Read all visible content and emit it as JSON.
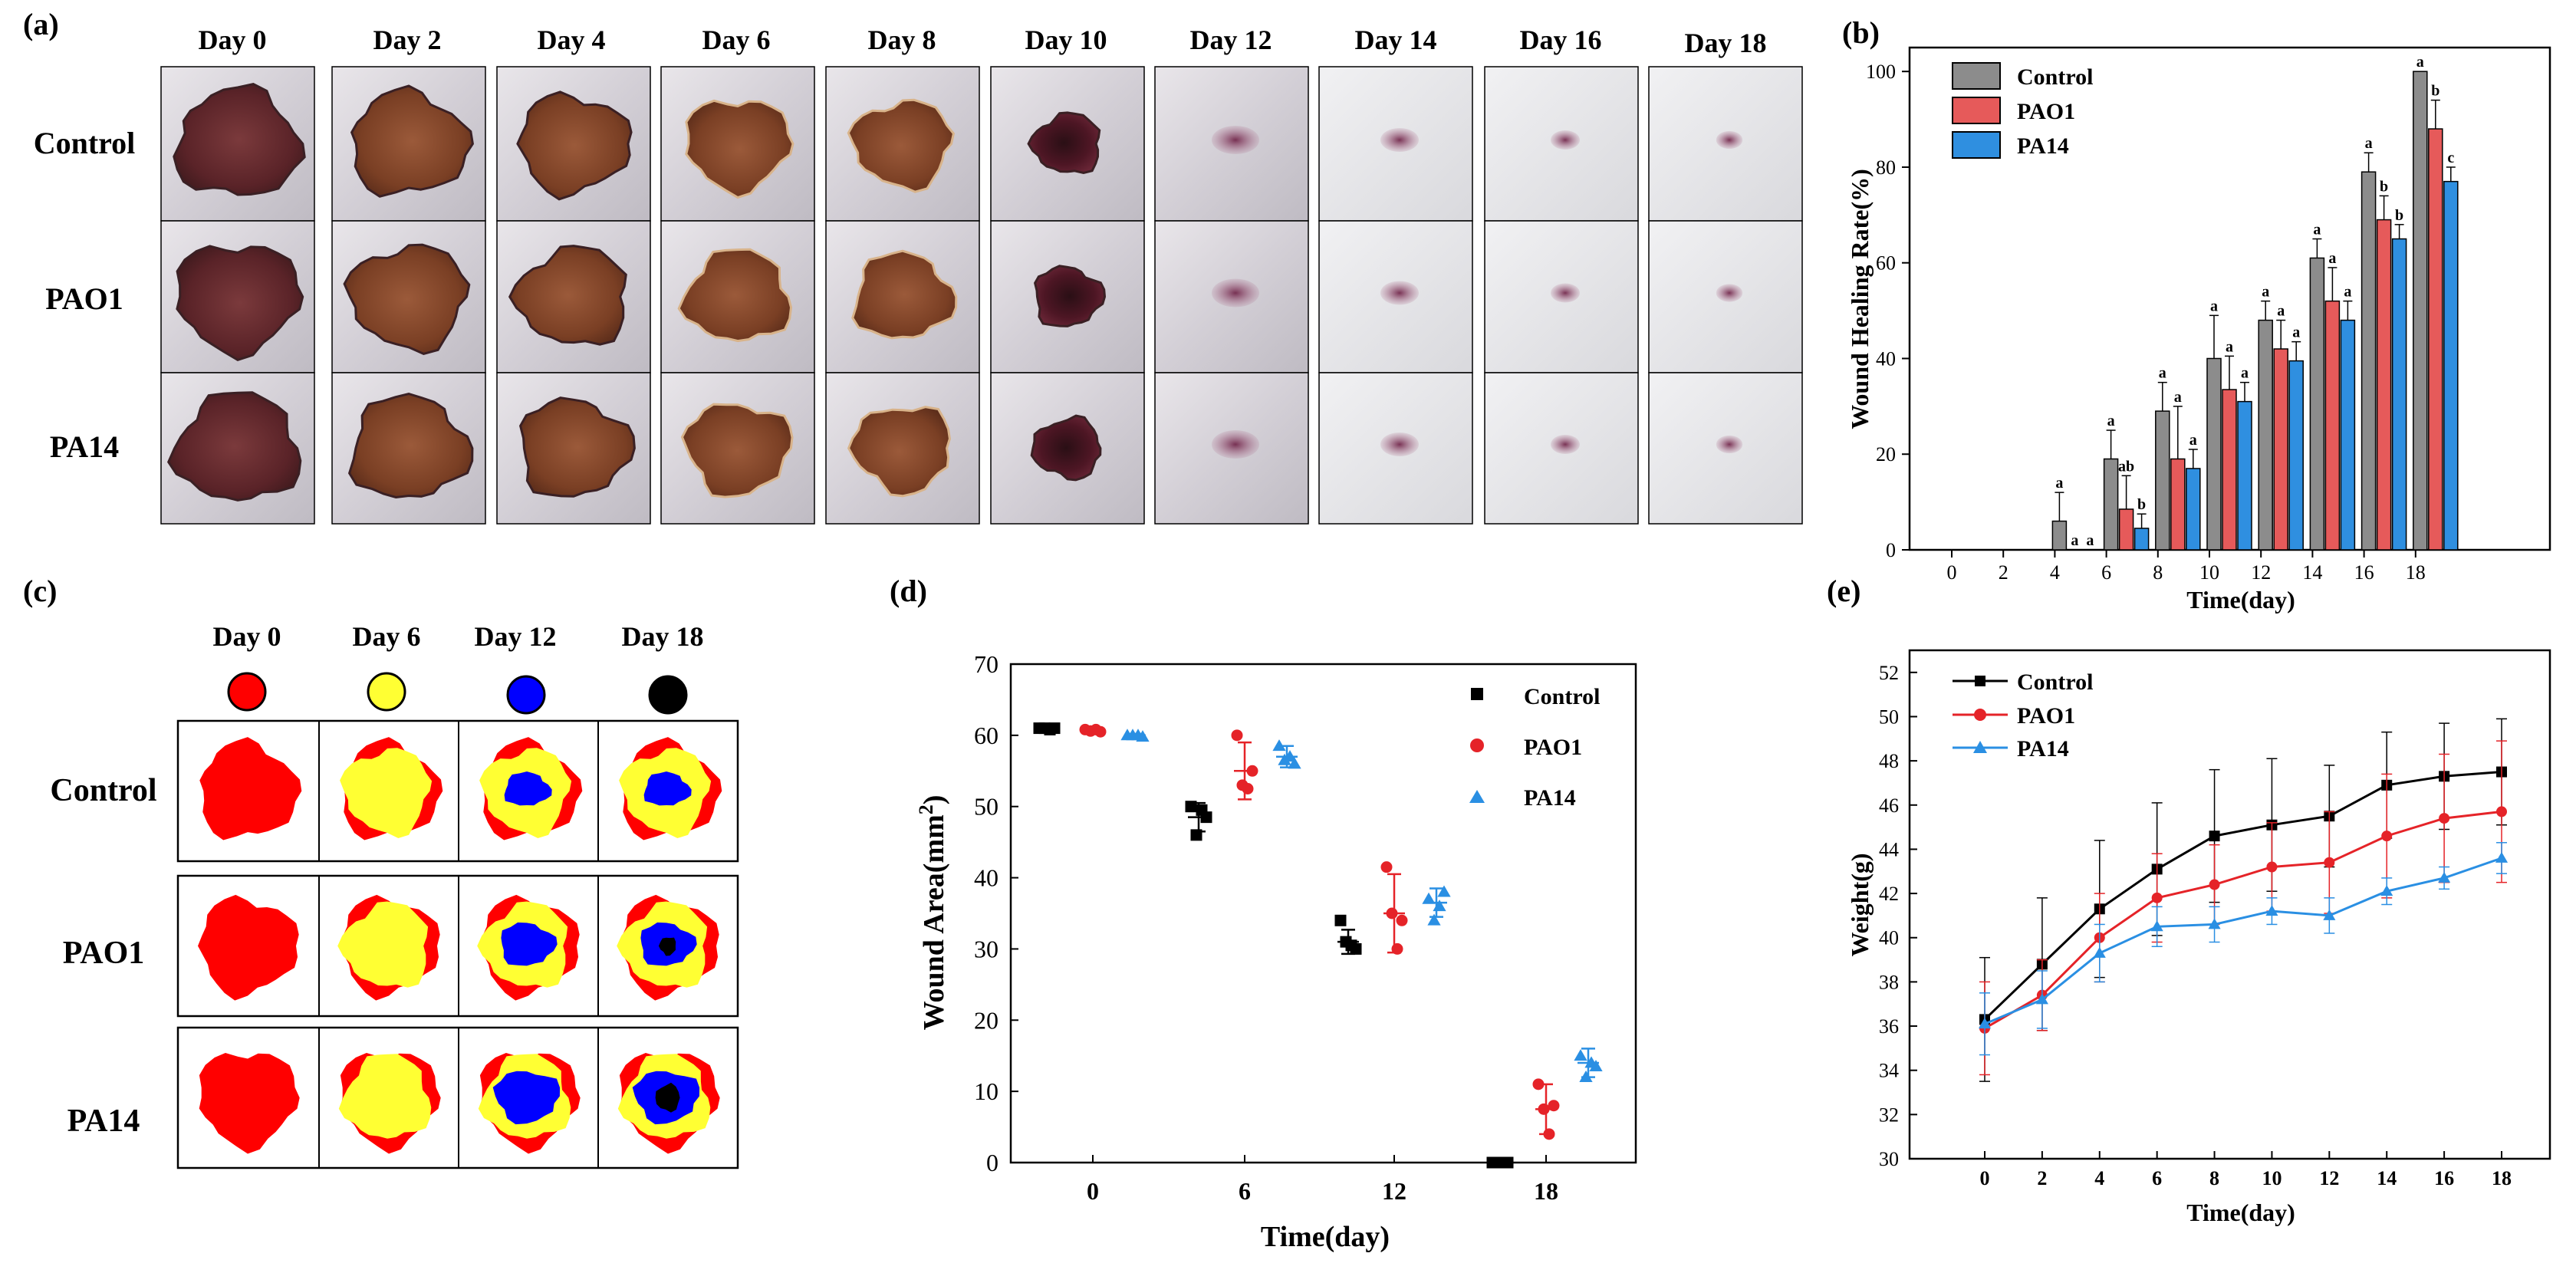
{
  "panel_labels": {
    "a": "(a)",
    "b": "(b)",
    "c": "(c)",
    "d": "(d)",
    "e": "(e)"
  },
  "groups": [
    "Control",
    "PAO1",
    "PA14"
  ],
  "colors": {
    "control": "#000000",
    "pao1": "#e52328",
    "pa14": "#2a8fe3",
    "bar_control": "#8c8c8c",
    "bar_pao1": "#e65a5a",
    "bar_pa14": "#2f8fe0",
    "map_red": "#ff0000",
    "map_yellow": "#ffff33",
    "map_blue": "#0000ff",
    "map_black": "#000000"
  },
  "panel_a": {
    "days": [
      "Day 0",
      "Day 2",
      "Day 4",
      "Day 6",
      "Day 8",
      "Day 10",
      "Day 12",
      "Day 14",
      "Day 16",
      "Day 18"
    ],
    "rows": [
      "Control",
      "PAO1",
      "PA14"
    ]
  },
  "panel_c": {
    "days": [
      "Day 0",
      "Day 6",
      "Day 12",
      "Day 18"
    ],
    "rows": [
      "Control",
      "PAO1",
      "PA14"
    ]
  },
  "chart_data": [
    {
      "id": "b",
      "type": "bar",
      "xlabel": "Time(day)",
      "ylabel": "Wound Healing Rate(%)",
      "ylim": [
        0,
        105
      ],
      "yticks": [
        0,
        20,
        40,
        60,
        80,
        100
      ],
      "categories": [
        "0",
        "2",
        "4",
        "6",
        "8",
        "10",
        "12",
        "14",
        "16",
        "18"
      ],
      "legend": [
        "Control",
        "PAO1",
        "PA14"
      ],
      "legend_position": "top-left",
      "series": [
        {
          "name": "Control",
          "values": [
            0,
            0,
            6,
            19,
            29,
            40,
            48,
            61,
            79,
            100
          ],
          "errors": [
            0,
            0,
            6,
            6,
            6,
            9,
            4,
            4,
            4,
            0
          ],
          "letters": [
            "",
            "",
            "a",
            "a",
            "a",
            "a",
            "a",
            "a",
            "a",
            "a"
          ]
        },
        {
          "name": "PAO1",
          "values": [
            0,
            0,
            0,
            8.5,
            19,
            33.5,
            42,
            52,
            69,
            88
          ],
          "errors": [
            0,
            0,
            0,
            7,
            11,
            7,
            6,
            7,
            5,
            6
          ],
          "letters": [
            "",
            "",
            "a",
            "ab",
            "a",
            "a",
            "a",
            "a",
            "b",
            "b"
          ]
        },
        {
          "name": "PA14",
          "values": [
            0,
            0,
            0,
            4.5,
            17,
            31,
            39.5,
            48,
            65,
            77
          ],
          "errors": [
            0,
            0,
            0,
            3,
            4,
            4,
            4,
            4,
            3,
            3
          ],
          "letters": [
            "",
            "",
            "a",
            "b",
            "a",
            "a",
            "a",
            "a",
            "b",
            "c"
          ]
        }
      ]
    },
    {
      "id": "d",
      "type": "scatter",
      "xlabel": "Time(day)",
      "ylabel": "Wound Area(mm2)",
      "ylabel_main": "Wound Area(mm",
      "ylabel_sup": "2",
      "ylabel_end": ")",
      "ylim": [
        0,
        70
      ],
      "yticks": [
        0,
        10,
        20,
        30,
        40,
        50,
        60,
        70
      ],
      "xticks": [
        "0",
        "6",
        "12",
        "18"
      ],
      "legend": [
        "Control",
        "PAO1",
        "PA14"
      ],
      "legend_position": "top-right",
      "series": [
        {
          "name": "Control",
          "marker": "square",
          "groups": [
            {
              "day": "0",
              "points": [
                61,
                61,
                60.8,
                61
              ],
              "mean": 61,
              "sd": 0.3
            },
            {
              "day": "6",
              "points": [
                50,
                46,
                49.5,
                48.5
              ],
              "mean": 48.5,
              "sd": 2
            },
            {
              "day": "12",
              "points": [
                34,
                31,
                30.5,
                30
              ],
              "mean": 31,
              "sd": 1.7
            },
            {
              "day": "18",
              "points": [
                0,
                0,
                0,
                0
              ],
              "mean": 0,
              "sd": 0
            }
          ]
        },
        {
          "name": "PAO1",
          "marker": "circle",
          "groups": [
            {
              "day": "0",
              "points": [
                60.8,
                60.6,
                60.8,
                60.5
              ],
              "mean": 60.7,
              "sd": 0.2
            },
            {
              "day": "6",
              "points": [
                60,
                53,
                52.5,
                55
              ],
              "mean": 55,
              "sd": 4
            },
            {
              "day": "12",
              "points": [
                41.5,
                35,
                30,
                34
              ],
              "mean": 35,
              "sd": 5.5
            },
            {
              "day": "18",
              "points": [
                11,
                7.5,
                4,
                8
              ],
              "mean": 7.5,
              "sd": 3.5
            }
          ]
        },
        {
          "name": "PA14",
          "marker": "triangle",
          "groups": [
            {
              "day": "0",
              "points": [
                60,
                60,
                60,
                59.8
              ],
              "mean": 60,
              "sd": 0.2
            },
            {
              "day": "6",
              "points": [
                58.5,
                56.5,
                57,
                56
              ],
              "mean": 57,
              "sd": 1.5
            },
            {
              "day": "12",
              "points": [
                37,
                34,
                36,
                38
              ],
              "mean": 36.5,
              "sd": 2
            },
            {
              "day": "18",
              "points": [
                15,
                12,
                14,
                13.5
              ],
              "mean": 14,
              "sd": 2
            }
          ]
        }
      ]
    },
    {
      "id": "e",
      "type": "line",
      "xlabel": "Time(day)",
      "ylabel": "Weight(g)",
      "ylim": [
        30,
        53
      ],
      "yticks": [
        30,
        32,
        34,
        36,
        38,
        40,
        42,
        44,
        46,
        48,
        50,
        52
      ],
      "x": [
        0,
        2,
        4,
        6,
        8,
        10,
        12,
        14,
        16,
        18
      ],
      "legend": [
        "Control",
        "PAO1",
        "PA14"
      ],
      "legend_position": "top-left",
      "series": [
        {
          "name": "Control",
          "marker": "square",
          "values": [
            36.3,
            38.8,
            41.3,
            43.1,
            44.6,
            45.1,
            45.5,
            46.9,
            47.3,
            47.5
          ],
          "errors": [
            2.8,
            3,
            3.1,
            3,
            3,
            3,
            2.3,
            2.4,
            2.4,
            2.4
          ]
        },
        {
          "name": "PAO1",
          "marker": "circle",
          "values": [
            35.9,
            37.4,
            40.0,
            41.8,
            42.4,
            43.2,
            43.4,
            44.6,
            45.4,
            45.7
          ],
          "errors": [
            2.1,
            1.6,
            2,
            2,
            1.8,
            2,
            2.3,
            2.8,
            2.9,
            3.2
          ]
        },
        {
          "name": "PA14",
          "marker": "triangle",
          "values": [
            36.1,
            37.2,
            39.3,
            40.5,
            40.6,
            41.2,
            41.0,
            42.1,
            42.7,
            43.6
          ],
          "errors": [
            1.4,
            1.3,
            1.3,
            0.9,
            0.8,
            0.6,
            0.8,
            0.6,
            0.5,
            0.7
          ]
        }
      ]
    }
  ]
}
